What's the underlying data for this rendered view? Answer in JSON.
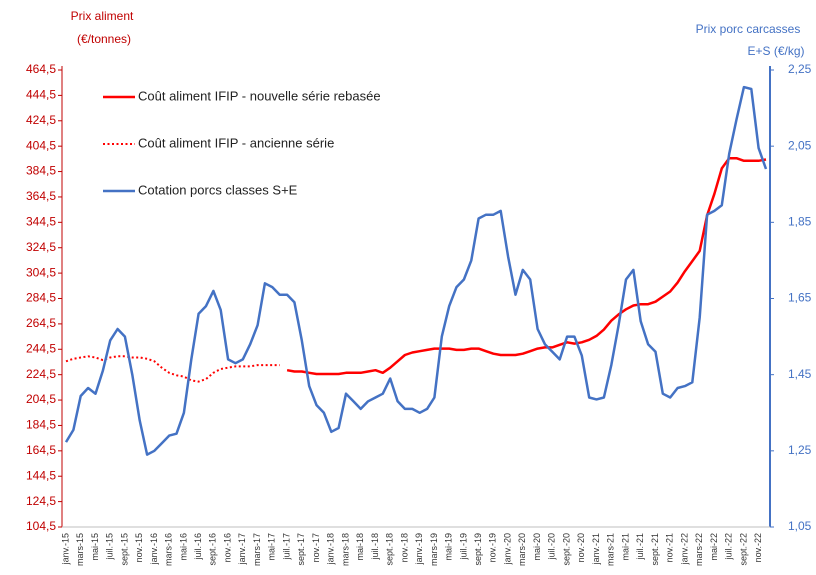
{
  "chart_data": {
    "type": "line",
    "y_label_lines": [
      "Prix aliment",
      "(€/tonnes)"
    ],
    "y2_label_lines": [
      "Prix porc carcasses",
      "E+S (€/kg)"
    ],
    "categories": [
      "janv.-15",
      null,
      "mars-15",
      null,
      "mai-15",
      null,
      "juil.-15",
      null,
      "sept.-15",
      null,
      "nov.-15",
      null,
      "janv.-16",
      null,
      "mars-16",
      null,
      "mai-16",
      null,
      "juil.-16",
      null,
      "sept.-16",
      null,
      "nov.-16",
      null,
      "janv.-17",
      null,
      "mars-17",
      null,
      "mai-17",
      null,
      "juil.-17",
      null,
      "sept.-17",
      null,
      "nov.-17",
      null,
      "janv.-18",
      null,
      "mars-18",
      null,
      "mai-18",
      null,
      "juil.-18",
      null,
      "sept.-18",
      null,
      "nov.-18",
      null,
      "janv.-19",
      null,
      "mars-19",
      null,
      "mai-19",
      null,
      "juil.-19",
      null,
      "sept.-19",
      null,
      "nov.-19",
      null,
      "janv.-20",
      null,
      "mars-20",
      null,
      "mai-20",
      null,
      "juil.-20",
      null,
      "sept.-20",
      null,
      "nov.-20",
      null,
      "janv.-21",
      null,
      "mars-21",
      null,
      "mai-21",
      null,
      "juil.-21",
      null,
      "sept.-21",
      null,
      "nov.-21",
      null,
      "janv.-22",
      null,
      "mars-22",
      null,
      "mai-22",
      null,
      "juil.-22",
      null,
      "sept.-22",
      null,
      "nov.-22",
      null
    ],
    "series": [
      {
        "name": "Coût aliment IFIP - nouvelle série rebasée",
        "color": "#ff0000",
        "style": "solid",
        "values": [
          null,
          null,
          null,
          null,
          null,
          null,
          null,
          null,
          null,
          null,
          null,
          null,
          null,
          null,
          null,
          null,
          null,
          null,
          null,
          null,
          null,
          null,
          null,
          null,
          null,
          null,
          null,
          null,
          null,
          null,
          228,
          227,
          227,
          226,
          225,
          225,
          225,
          225,
          226,
          226,
          226,
          227,
          228,
          226,
          230,
          235,
          240,
          242,
          243,
          244,
          245,
          245,
          245,
          244,
          244,
          245,
          245,
          243,
          241,
          240,
          240,
          240,
          241,
          243,
          245,
          246,
          246,
          248,
          250,
          249,
          250,
          252,
          255,
          260,
          267,
          272,
          276,
          279,
          280,
          280,
          282,
          286,
          290,
          297,
          306,
          314,
          322,
          350,
          367,
          387,
          395,
          395,
          393,
          393,
          393,
          394
        ]
      },
      {
        "name": "Coût aliment IFIP - ancienne série",
        "color": "#ff0000",
        "style": "dotted",
        "values": [
          235,
          237,
          238,
          239,
          238,
          236,
          238,
          239,
          239,
          238,
          238,
          237,
          235,
          230,
          226,
          224,
          223,
          220,
          219,
          221,
          226,
          229,
          230,
          231,
          231,
          231,
          232,
          232,
          232,
          232,
          null,
          null,
          null,
          null,
          null,
          null,
          null,
          null,
          null,
          null,
          null,
          null,
          null,
          null,
          null,
          null,
          null,
          null,
          null,
          null,
          null,
          null,
          null,
          null,
          null,
          null,
          null,
          null,
          null,
          null,
          null,
          null,
          null,
          null,
          null,
          null,
          null,
          null,
          null,
          null,
          null,
          null,
          null,
          null,
          null,
          null,
          null,
          null,
          null,
          null,
          null,
          null,
          null,
          null,
          null,
          null,
          null,
          null,
          null,
          null,
          null,
          null,
          null,
          null,
          null,
          null
        ]
      },
      {
        "name": "Cotation porcs classes S+E",
        "color": "#4472c4",
        "style": "solid",
        "axis": "y2",
        "values": [
          1.273,
          1.305,
          1.394,
          1.415,
          1.4,
          1.46,
          1.54,
          1.57,
          1.55,
          1.45,
          1.33,
          1.24,
          1.25,
          1.27,
          1.29,
          1.295,
          1.35,
          1.49,
          1.61,
          1.63,
          1.67,
          1.62,
          1.49,
          1.48,
          1.49,
          1.53,
          1.58,
          1.69,
          1.68,
          1.66,
          1.66,
          1.64,
          1.54,
          1.42,
          1.37,
          1.35,
          1.3,
          1.31,
          1.4,
          1.38,
          1.36,
          1.38,
          1.39,
          1.4,
          1.44,
          1.38,
          1.36,
          1.36,
          1.35,
          1.36,
          1.39,
          1.55,
          1.63,
          1.68,
          1.7,
          1.75,
          1.86,
          1.87,
          1.87,
          1.88,
          1.76,
          1.66,
          1.725,
          1.7,
          1.57,
          1.53,
          1.51,
          1.49,
          1.55,
          1.55,
          1.5,
          1.39,
          1.385,
          1.39,
          1.475,
          1.58,
          1.7,
          1.725,
          1.59,
          1.53,
          1.51,
          1.4,
          1.39,
          1.415,
          1.42,
          1.43,
          1.6,
          1.87,
          1.88,
          1.895,
          2.03,
          2.12,
          2.205,
          2.2,
          2.045,
          1.99
        ]
      }
    ],
    "ylim": [
      104.5,
      464.5
    ],
    "yticks": [
      {
        "value": 104.5,
        "label": "104,5"
      },
      {
        "value": 124.5,
        "label": "124,5"
      },
      {
        "value": 144.5,
        "label": "144,5"
      },
      {
        "value": 164.5,
        "label": "164,5"
      },
      {
        "value": 184.5,
        "label": "184,5"
      },
      {
        "value": 204.5,
        "label": "204,5"
      },
      {
        "value": 224.5,
        "label": "224,5"
      },
      {
        "value": 244.5,
        "label": "244,5"
      },
      {
        "value": 264.5,
        "label": "264,5"
      },
      {
        "value": 284.5,
        "label": "284,5"
      },
      {
        "value": 304.5,
        "label": "304,5"
      },
      {
        "value": 324.5,
        "label": "324,5"
      },
      {
        "value": 344.5,
        "label": "344,5"
      },
      {
        "value": 364.5,
        "label": "364,5"
      },
      {
        "value": 384.5,
        "label": "384,5"
      },
      {
        "value": 404.5,
        "label": "404,5"
      },
      {
        "value": 424.5,
        "label": "424,5"
      },
      {
        "value": 444.5,
        "label": "444,5"
      },
      {
        "value": 464.5,
        "label": "464,5"
      }
    ],
    "y2lim": [
      1.05,
      2.25
    ],
    "y2ticks": [
      {
        "value": 1.05,
        "label": "1,05"
      },
      {
        "value": 1.25,
        "label": "1,25"
      },
      {
        "value": 1.45,
        "label": "1,45"
      },
      {
        "value": 1.65,
        "label": "1,65"
      },
      {
        "value": 1.85,
        "label": "1,85"
      },
      {
        "value": 2.05,
        "label": "2,05"
      },
      {
        "value": 2.25,
        "label": "2,25"
      }
    ],
    "y_color": "#c00000",
    "y2_color": "#4472c4",
    "grid": false,
    "legend": "upper left"
  }
}
